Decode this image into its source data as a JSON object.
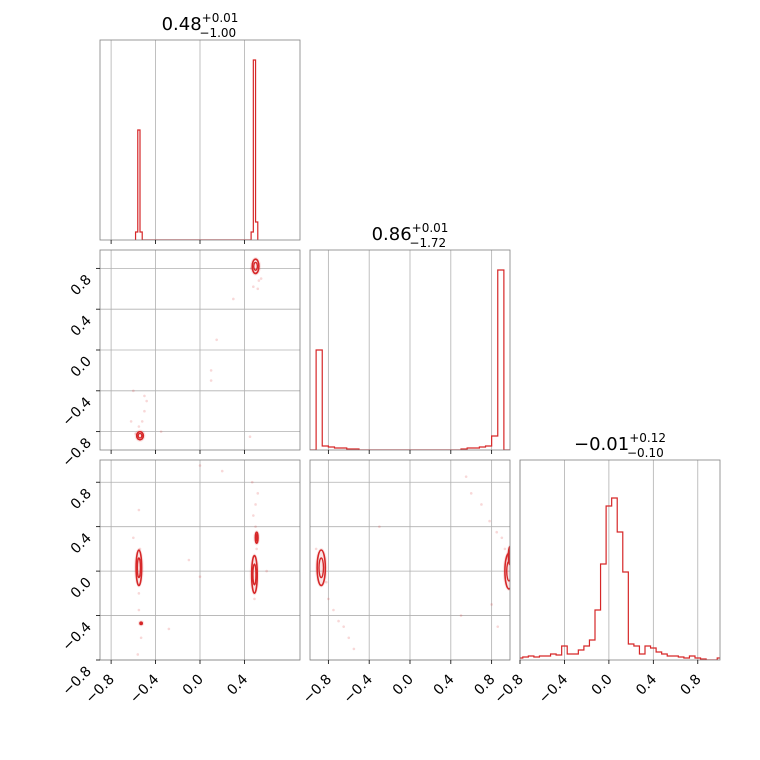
{
  "chart_data": {
    "type": "corner",
    "color": "#d62728",
    "parameters": [
      {
        "title_value": "0.48",
        "title_plus": "+0.01",
        "title_minus": "−1.00",
        "range": [
          -0.9,
          0.9
        ]
      },
      {
        "title_value": "0.86",
        "title_plus": "+0.01",
        "title_minus": "−1.72",
        "range": [
          -0.98,
          0.98
        ]
      },
      {
        "title_value": "−0.01",
        "title_plus": "+0.12",
        "title_minus": "−0.10",
        "range": [
          -0.8,
          1.0
        ]
      }
    ],
    "grid": true,
    "tick_labels": {
      "p1_x": [
        "−0.8",
        "−0.4",
        "0.0",
        "0.4"
      ],
      "p2_x": [
        "−0.8",
        "−0.4",
        "0.0",
        "0.4",
        "0.8"
      ],
      "p2_y": [
        "0.8",
        "0.4",
        "0.0",
        "−0.4",
        "−0.8"
      ],
      "p3_x": [
        "−0.8",
        "−0.4",
        "0.0",
        "0.4",
        "0.8"
      ],
      "p3_y": [
        "0.8",
        "0.4",
        "0.0",
        "−0.4",
        "−0.8"
      ]
    },
    "histograms": [
      {
        "param": 1,
        "bin_edges": [
          -0.58,
          -0.56,
          -0.54,
          -0.52,
          0.46,
          0.48,
          0.5,
          0.52
        ],
        "counts": [
          0.04,
          0.55,
          0.04,
          0,
          0.04,
          0.9,
          0.09
        ]
      },
      {
        "param": 2,
        "bin_edges": [
          -0.98,
          -0.92,
          -0.86,
          -0.8,
          -0.74,
          -0.68,
          -0.62,
          -0.56,
          -0.5,
          0.5,
          0.56,
          0.62,
          0.68,
          0.74,
          0.8,
          0.86,
          0.92,
          0.98
        ],
        "counts": [
          0,
          0.5,
          0.02,
          0.015,
          0.01,
          0.01,
          0.005,
          0.005,
          0,
          0.005,
          0.01,
          0.01,
          0.015,
          0.02,
          0.07,
          0.9,
          0
        ],
        "note": "gap between -0.5 and 0.5 has zero counts"
      },
      {
        "param": 3,
        "x": [
          -0.8,
          -0.75,
          -0.7,
          -0.65,
          -0.6,
          -0.55,
          -0.5,
          -0.45,
          -0.4,
          -0.35,
          -0.3,
          -0.25,
          -0.2,
          -0.15,
          -0.1,
          -0.05,
          0.0,
          0.05,
          0.1,
          0.15,
          0.2,
          0.25,
          0.3,
          0.35,
          0.4,
          0.45,
          0.5,
          0.55,
          0.6,
          0.65,
          0.7,
          0.75,
          0.8,
          0.85,
          0.9,
          0.95,
          1.0
        ],
        "counts": [
          0.01,
          0.015,
          0.02,
          0.015,
          0.02,
          0.02,
          0.03,
          0.025,
          0.07,
          0.03,
          0.03,
          0.05,
          0.07,
          0.1,
          0.25,
          0.48,
          0.77,
          0.81,
          0.64,
          0.44,
          0.08,
          0.07,
          0.03,
          0.07,
          0.06,
          0.04,
          0.03,
          0.02,
          0.02,
          0.015,
          0.01,
          0.02,
          0.01,
          0.005,
          0.0,
          0.0,
          0.01
        ]
      }
    ],
    "contours": [
      {
        "panel": "p1-p2",
        "blobs": [
          [
            -0.54,
            -0.84,
            0.03,
            0.04
          ],
          [
            0.5,
            0.82,
            0.03,
            0.07
          ]
        ]
      },
      {
        "panel": "p1-p3",
        "blobs": [
          [
            -0.55,
            0.03,
            0.025,
            0.16
          ],
          [
            0.49,
            -0.03,
            0.025,
            0.17
          ],
          [
            0.51,
            0.3,
            0.012,
            0.05
          ],
          [
            -0.53,
            -0.47,
            0.01,
            0.01
          ]
        ]
      },
      {
        "panel": "p2-p3",
        "blobs": [
          [
            -0.87,
            0.03,
            0.04,
            0.16
          ],
          [
            0.97,
            0.0,
            0.04,
            0.16
          ],
          [
            0.98,
            0.14,
            0.015,
            0.08
          ]
        ]
      }
    ],
    "scatter": [
      {
        "panel": "p1-p2",
        "points": [
          [
            0.5,
            0.75
          ],
          [
            0.52,
            0.6
          ],
          [
            0.55,
            0.7
          ],
          [
            0.46,
            0.8
          ],
          [
            0.53,
            0.68
          ],
          [
            0.48,
            0.62
          ],
          [
            -0.52,
            -0.7
          ],
          [
            -0.5,
            -0.6
          ],
          [
            -0.48,
            -0.5
          ],
          [
            -0.55,
            -0.75
          ],
          [
            -0.58,
            -0.82
          ],
          [
            -0.62,
            -0.7
          ],
          [
            -0.5,
            -0.45
          ],
          [
            0.1,
            -0.3
          ],
          [
            0.15,
            0.1
          ],
          [
            0.3,
            0.5
          ],
          [
            0.1,
            -0.2
          ],
          [
            0.45,
            -0.85
          ],
          [
            -0.6,
            -0.4
          ],
          [
            -0.35,
            -0.8
          ]
        ]
      },
      {
        "panel": "p1-p3",
        "points": [
          [
            0.5,
            0.6
          ],
          [
            0.48,
            0.5
          ],
          [
            0.5,
            0.4
          ],
          [
            0.52,
            0.7
          ],
          [
            0.47,
            0.8
          ],
          [
            0.51,
            0.2
          ],
          [
            0.49,
            -0.25
          ],
          [
            -0.54,
            0.2
          ],
          [
            -0.55,
            -0.2
          ],
          [
            -0.55,
            -0.35
          ],
          [
            -0.53,
            -0.6
          ],
          [
            -0.56,
            -0.75
          ],
          [
            -0.6,
            0.3
          ],
          [
            -0.55,
            0.55
          ],
          [
            0.0,
            0.95
          ],
          [
            0.2,
            0.9
          ],
          [
            -0.1,
            0.1
          ],
          [
            0.0,
            -0.05
          ],
          [
            -0.28,
            -0.52
          ],
          [
            0.6,
            0.0
          ]
        ]
      },
      {
        "panel": "p2-p3",
        "points": [
          [
            0.55,
            0.85
          ],
          [
            0.6,
            0.7
          ],
          [
            0.7,
            0.6
          ],
          [
            0.78,
            0.45
          ],
          [
            0.85,
            0.35
          ],
          [
            0.9,
            0.3
          ],
          [
            0.93,
            0.2
          ],
          [
            0.8,
            -0.3
          ],
          [
            0.86,
            -0.5
          ],
          [
            -0.82,
            -0.1
          ],
          [
            -0.8,
            -0.25
          ],
          [
            -0.75,
            -0.35
          ],
          [
            -0.7,
            -0.45
          ],
          [
            -0.65,
            -0.5
          ],
          [
            -0.6,
            -0.6
          ],
          [
            -0.55,
            -0.7
          ],
          [
            -0.45,
            -0.85
          ],
          [
            -0.92,
            0.2
          ],
          [
            -0.3,
            0.4
          ],
          [
            0.5,
            -0.4
          ]
        ]
      }
    ]
  }
}
